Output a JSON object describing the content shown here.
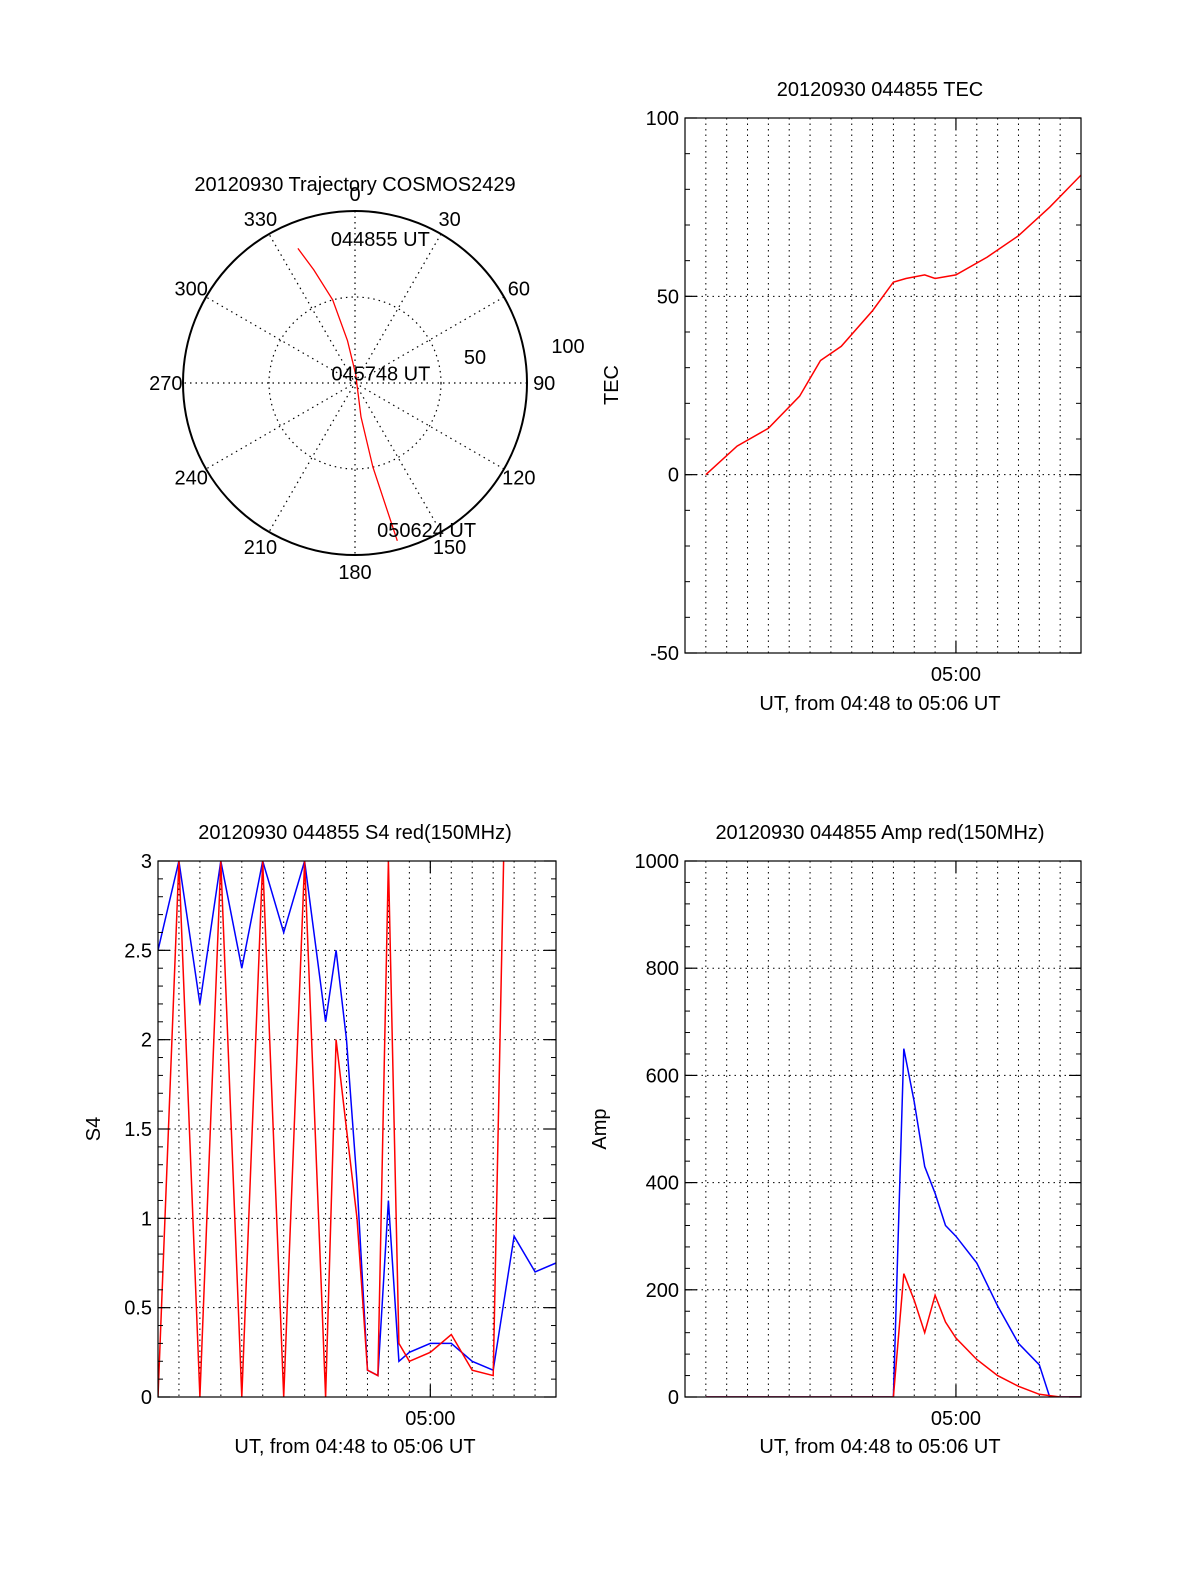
{
  "chart_data": [
    {
      "type": "polar",
      "title": "20120930 Trajectory COSMOS2429",
      "angle_labels": [
        "0",
        "30",
        "60",
        "90",
        "120",
        "150",
        "180",
        "210",
        "240",
        "270",
        "300",
        "330"
      ],
      "radius_labels": [
        "50",
        "100"
      ],
      "rlim": [
        0,
        100
      ],
      "grid": true,
      "series": [
        {
          "color": "#ff0000",
          "points": [
            [
              337.0,
              85.0
            ],
            [
              340.0,
              70.0
            ],
            [
              345.0,
              50.0
            ],
            [
              350.0,
              25.0
            ],
            [
              5.0,
              5.0
            ],
            [
              170.0,
              20.0
            ],
            [
              168.0,
              50.0
            ],
            [
              165.0,
              95.0
            ]
          ]
        }
      ],
      "annotations": [
        {
          "text": "044855 UT",
          "az": 10,
          "r": 85
        },
        {
          "text": "045748 UT",
          "az": 70,
          "r": 16
        },
        {
          "text": "050624 UT",
          "az": 154,
          "r": 95
        }
      ]
    },
    {
      "type": "line",
      "title": "20120930 044855 TEC",
      "xlabel": "UT, from 04:48 to 05:06 UT",
      "ylabel": "TEC",
      "xlim": [
        -1.0,
        18.0
      ],
      "ylim": [
        -50,
        100
      ],
      "xticks": [
        {
          "value": 12,
          "label": "05:00"
        }
      ],
      "yticks": [
        -50,
        0,
        50,
        100
      ],
      "grid": true,
      "series": [
        {
          "color": "#ff0000",
          "x": [
            0.0,
            1.5,
            3.0,
            4.5,
            5.5,
            6.5,
            8.0,
            9.0,
            9.6,
            10.5,
            11.0,
            12.0,
            13.5,
            15.0,
            16.5,
            18.0
          ],
          "y": [
            0,
            8,
            13,
            22,
            32,
            36,
            46,
            54,
            55,
            56,
            55,
            56,
            61,
            67,
            75,
            84
          ]
        }
      ]
    },
    {
      "type": "line",
      "title": "20120930 044855 S4 red(150MHz)",
      "xlabel": "UT, from 04:48 to 05:06 UT",
      "ylabel": "S4",
      "xlim": [
        -1.0,
        18.0
      ],
      "ylim": [
        0,
        3
      ],
      "xticks": [
        {
          "value": 12,
          "label": "05:00"
        }
      ],
      "yticks": [
        0,
        0.5,
        1,
        1.5,
        2,
        2.5,
        3
      ],
      "grid": true,
      "series": [
        {
          "color": "#0000ff",
          "x": [
            -1.0,
            0.0,
            1.0,
            2.0,
            3.0,
            4.0,
            5.0,
            6.0,
            7.0,
            7.5,
            8.0,
            8.5,
            9.0,
            9.5,
            10.0,
            10.5,
            11.0,
            12.0,
            13.0,
            14.0,
            15.0,
            16.0,
            17.0,
            18.0
          ],
          "y": [
            2.5,
            3.0,
            2.2,
            3.0,
            2.4,
            3.0,
            2.6,
            3.0,
            2.1,
            2.5,
            2.0,
            1.2,
            0.15,
            0.12,
            1.1,
            0.2,
            0.25,
            0.3,
            0.3,
            0.2,
            0.15,
            0.9,
            0.7,
            0.75
          ]
        },
        {
          "color": "#ff0000",
          "x": [
            -1.0,
            0.0,
            1.0,
            2.0,
            3.0,
            4.0,
            5.0,
            6.0,
            7.0,
            7.5,
            8.0,
            8.5,
            9.0,
            9.5,
            10.0,
            10.5,
            11.0,
            12.0,
            13.0,
            14.0,
            15.0,
            15.5
          ],
          "y": [
            0.0,
            3.0,
            0.0,
            3.0,
            0.0,
            3.0,
            0.0,
            3.0,
            0.0,
            2.0,
            1.5,
            1.0,
            0.15,
            0.12,
            3.0,
            0.3,
            0.2,
            0.25,
            0.35,
            0.15,
            0.12,
            3.0
          ]
        }
      ]
    },
    {
      "type": "line",
      "title": "20120930 044855 Amp red(150MHz)",
      "xlabel": "UT, from 04:48 to 05:06 UT",
      "ylabel": "Amp",
      "xlim": [
        -1.0,
        18.0
      ],
      "ylim": [
        0,
        1000
      ],
      "xticks": [
        {
          "value": 12,
          "label": "05:00"
        }
      ],
      "yticks": [
        0,
        200,
        400,
        600,
        800,
        1000
      ],
      "grid": true,
      "series": [
        {
          "color": "#0000ff",
          "x": [
            0.0,
            9.0,
            9.5,
            10.0,
            10.5,
            11.0,
            11.5,
            12.0,
            13.0,
            14.0,
            15.0,
            16.0,
            16.5,
            17.0,
            18.0
          ],
          "y": [
            0,
            0,
            650,
            550,
            430,
            380,
            320,
            300,
            250,
            170,
            100,
            60,
            0,
            0,
            0
          ]
        },
        {
          "color": "#ff0000",
          "x": [
            0.0,
            9.0,
            9.5,
            10.0,
            10.5,
            11.0,
            11.5,
            12.0,
            13.0,
            14.0,
            15.0,
            16.0,
            17.0,
            18.0
          ],
          "y": [
            0,
            0,
            230,
            180,
            120,
            190,
            140,
            110,
            70,
            40,
            20,
            5,
            0,
            0
          ]
        }
      ]
    }
  ]
}
